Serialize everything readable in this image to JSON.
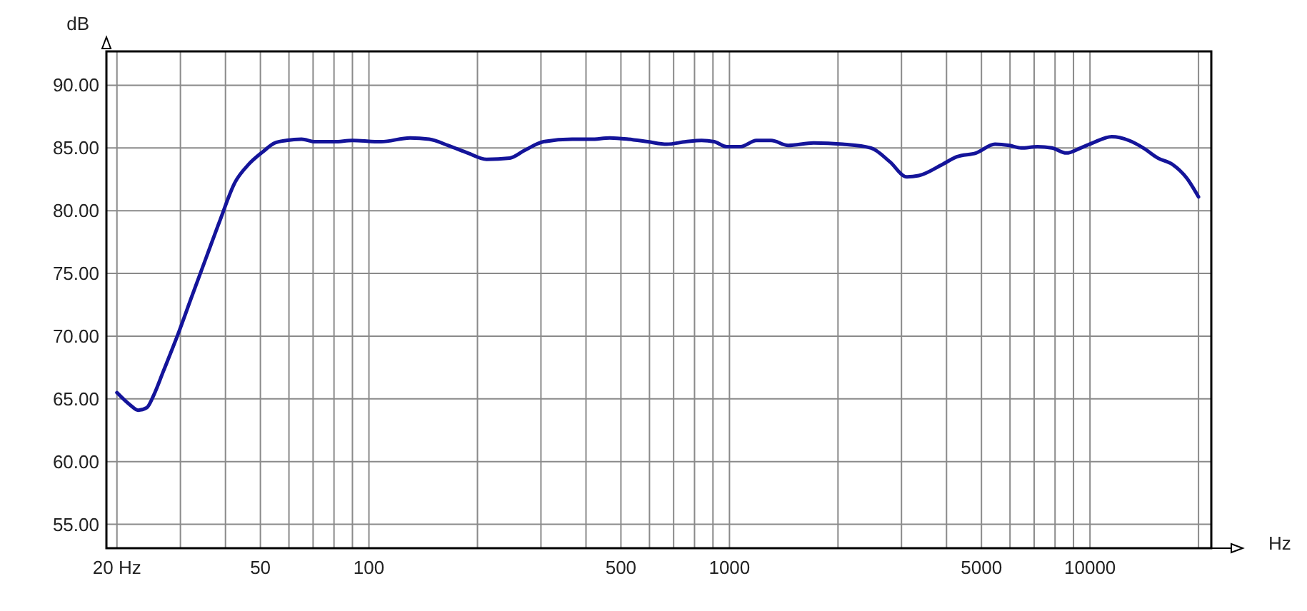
{
  "chart_data": {
    "type": "line",
    "xlabel": "Hz",
    "ylabel": "dB",
    "log": "x",
    "grid": true,
    "marker": "none",
    "line_style": "solid",
    "xlim": [
      18.7,
      21700
    ],
    "ylim": [
      53.1,
      92.7
    ],
    "xticks": [
      {
        "value": 20,
        "label": "20 Hz"
      },
      {
        "value": 30,
        "label": null
      },
      {
        "value": 40,
        "label": null
      },
      50,
      {
        "value": 60,
        "label": null
      },
      {
        "value": 70,
        "label": null
      },
      {
        "value": 80,
        "label": null
      },
      {
        "value": 90,
        "label": null
      },
      100,
      {
        "value": 200,
        "label": null
      },
      {
        "value": 300,
        "label": null
      },
      {
        "value": 400,
        "label": null
      },
      500,
      {
        "value": 600,
        "label": null
      },
      {
        "value": 700,
        "label": null
      },
      {
        "value": 800,
        "label": null
      },
      {
        "value": 900,
        "label": null
      },
      1000,
      {
        "value": 2000,
        "label": null
      },
      {
        "value": 3000,
        "label": null
      },
      {
        "value": 4000,
        "label": null
      },
      5000,
      {
        "value": 6000,
        "label": null
      },
      {
        "value": 7000,
        "label": null
      },
      {
        "value": 8000,
        "label": null
      },
      {
        "value": 9000,
        "label": null
      },
      10000,
      {
        "value": 20000,
        "label": null
      }
    ],
    "yticks": [
      {
        "value": 55,
        "label": "55.00"
      },
      {
        "value": 60,
        "label": "60.00"
      },
      {
        "value": 65,
        "label": "65.00"
      },
      {
        "value": 70,
        "label": "70.00"
      },
      {
        "value": 75,
        "label": "75.00"
      },
      {
        "value": 80,
        "label": "80.00"
      },
      {
        "value": 85,
        "label": "85.00"
      },
      {
        "value": 90,
        "label": "90.00"
      }
    ],
    "series": [
      {
        "color": "#14149a",
        "x": [
          20,
          21.8,
          22.9,
          24.2,
          25.3,
          26.9,
          29.4,
          32.3,
          35.4,
          38.7,
          42.4,
          46.4,
          50.8,
          54.8,
          59,
          65,
          71,
          80,
          90,
          108,
          130,
          147,
          166,
          188,
          212,
          246,
          270,
          305,
          366,
          412,
          466,
          524,
          593,
          670,
          757,
          837,
          907,
          984,
          1073,
          1188,
          1305,
          1455,
          1711,
          2060,
          2470,
          2785,
          3100,
          3350,
          3900,
          4270,
          4830,
          5450,
          5970,
          6440,
          7150,
          7840,
          8600,
          9420,
          10160,
          11490,
          12820,
          14060,
          15420,
          16920,
          18550,
          20000
        ],
        "values": [
          65.5,
          64.5,
          64.1,
          64.3,
          65.3,
          67.2,
          70.0,
          73.2,
          76.3,
          79.3,
          82.2,
          83.7,
          84.7,
          85.4,
          85.6,
          85.7,
          85.5,
          85.5,
          85.6,
          85.5,
          85.8,
          85.7,
          85.2,
          84.6,
          84.1,
          84.2,
          84.8,
          85.5,
          85.7,
          85.7,
          85.8,
          85.7,
          85.5,
          85.3,
          85.5,
          85.6,
          85.5,
          85.1,
          85.1,
          85.6,
          85.6,
          85.2,
          85.4,
          85.3,
          85.0,
          83.9,
          82.7,
          82.8,
          83.7,
          84.3,
          84.6,
          85.3,
          85.2,
          85.0,
          85.1,
          85.0,
          84.6,
          85.0,
          85.4,
          85.9,
          85.6,
          85.0,
          84.2,
          83.7,
          82.6,
          81.1
        ]
      }
    ]
  }
}
